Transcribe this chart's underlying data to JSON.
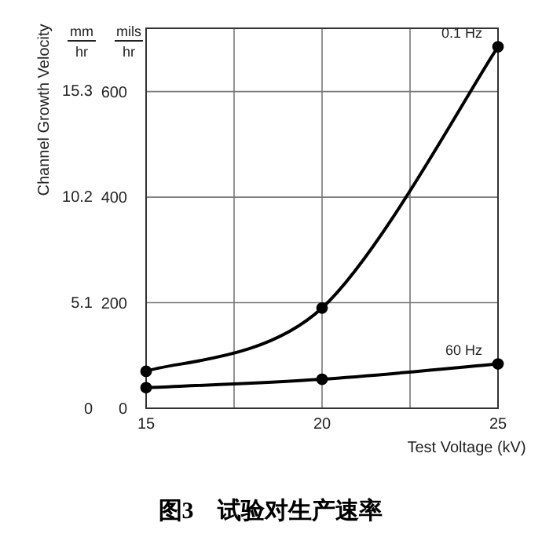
{
  "chart_data": {
    "type": "line",
    "title": "图3　试验对生产速率",
    "ylabel": "Channel Growth Velocity",
    "xlabel": "Test Voltage (kV)",
    "annotations": [
      "mm",
      "hr",
      "mils",
      "hr"
    ],
    "x": [
      15,
      20,
      25
    ],
    "xlim": [
      15,
      25
    ],
    "xticks": [
      15,
      {
        "value": 17.5,
        "label": null
      },
      20,
      {
        "value": 22.5,
        "label": null
      },
      25
    ],
    "ylim": [
      0,
      18.3
    ],
    "yticks": [
      0,
      5.1,
      10.2,
      15.3
    ],
    "y2lim": [
      0,
      720
    ],
    "y2ticks": [
      0,
      200,
      400,
      600
    ],
    "grid": true,
    "marker": "circle",
    "line_style": "solid",
    "series": [
      {
        "name": "0.1 Hz",
        "color": "#000000",
        "axis": "y2",
        "values": [
          70,
          190,
          685
        ]
      },
      {
        "name": "60 Hz",
        "color": "#000000",
        "axis": "y2",
        "values": [
          39,
          55,
          84
        ]
      }
    ]
  }
}
